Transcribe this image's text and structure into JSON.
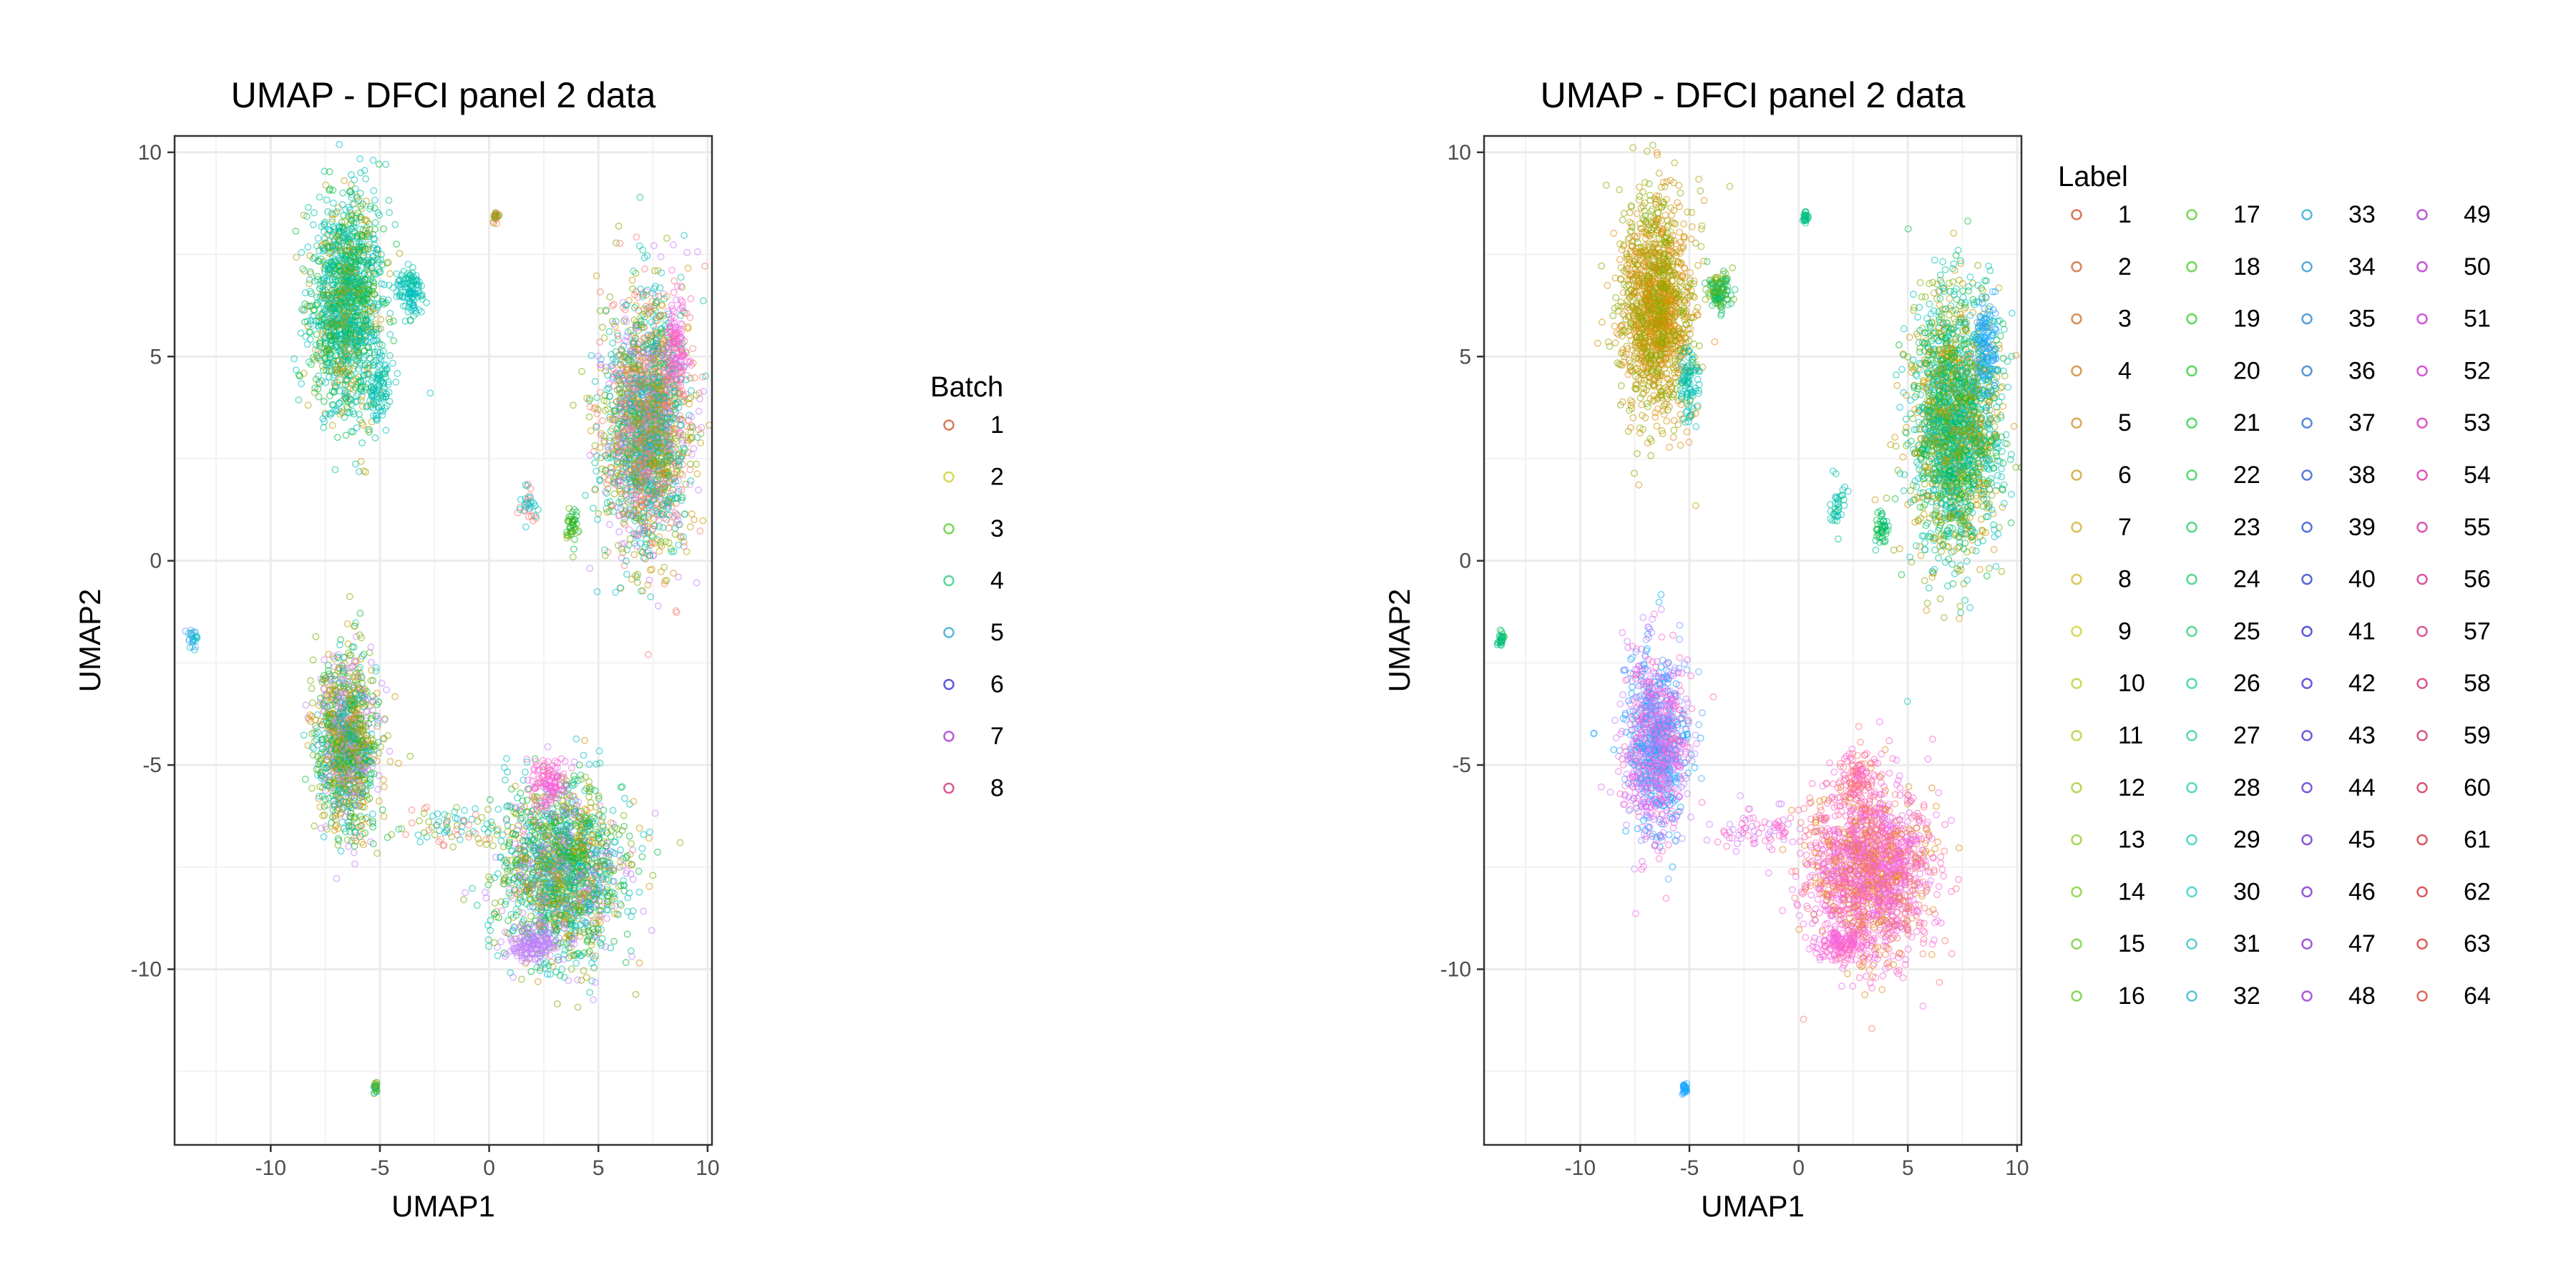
{
  "chart_data": [
    {
      "type": "scatter",
      "title": "UMAP - DFCI panel 2 data",
      "xlabel": "UMAP1",
      "ylabel": "UMAP2",
      "xlim": [
        -14.4,
        10.2
      ],
      "ylim": [
        -14.3,
        10.4
      ],
      "xticks": [
        -10,
        -5,
        0,
        5,
        10
      ],
      "yticks": [
        -10,
        -5,
        0,
        5,
        10
      ],
      "xtick_labels": [
        "-10",
        "-5",
        "0",
        "5",
        "10"
      ],
      "ytick_labels": [
        "-10",
        "-5",
        "0",
        "5",
        "10"
      ],
      "grid": true,
      "legend": {
        "title": "Batch",
        "placement": "right",
        "entries": [
          "1",
          "2",
          "3",
          "4",
          "5",
          "6",
          "7",
          "8"
        ]
      }
    },
    {
      "type": "scatter",
      "title": "UMAP - DFCI panel 2 data",
      "xlabel": "UMAP1",
      "ylabel": "UMAP2",
      "xlim": [
        -14.4,
        10.2
      ],
      "ylim": [
        -14.3,
        10.4
      ],
      "xticks": [
        -10,
        -5,
        0,
        5,
        10
      ],
      "yticks": [
        -10,
        -5,
        0,
        5,
        10
      ],
      "xtick_labels": [
        "-10",
        "-5",
        "0",
        "5",
        "10"
      ],
      "ytick_labels": [
        "-10",
        "-5",
        "0",
        "5",
        "10"
      ],
      "grid": true,
      "legend": {
        "title": "Label",
        "placement": "right",
        "columns": 4,
        "entries": [
          "1",
          "2",
          "3",
          "4",
          "5",
          "6",
          "7",
          "8",
          "9",
          "10",
          "11",
          "12",
          "13",
          "14",
          "15",
          "16",
          "17",
          "18",
          "19",
          "20",
          "21",
          "22",
          "23",
          "24",
          "25",
          "26",
          "27",
          "28",
          "29",
          "30",
          "31",
          "32",
          "33",
          "34",
          "35",
          "36",
          "37",
          "38",
          "39",
          "40",
          "41",
          "42",
          "43",
          "44",
          "45",
          "46",
          "47",
          "48",
          "49",
          "50",
          "51",
          "52",
          "53",
          "54",
          "55",
          "56",
          "57",
          "58",
          "59",
          "60",
          "61",
          "62",
          "63",
          "64"
        ]
      }
    }
  ],
  "clusters": [
    {
      "name": "upper-left",
      "cx": -6.5,
      "cy": 6.2,
      "rx": 1.5,
      "ry": 2.4,
      "weight": 1.0,
      "batch_colors": [
        "#00BFC4",
        "#00BA38",
        "#00C19F",
        "#B79F00"
      ],
      "label_colors": [
        "#CD9600",
        "#E68613",
        "#7CAE00",
        "#ABA300"
      ]
    },
    {
      "name": "upper-left-arm",
      "cx": -3.6,
      "cy": 6.6,
      "rx": 0.5,
      "ry": 0.5,
      "weight": 0.08,
      "batch_colors": [
        "#00BFC4",
        "#00C19F"
      ],
      "label_colors": [
        "#00BE67",
        "#7CAE00"
      ]
    },
    {
      "name": "upper-left-tail",
      "cx": -5.0,
      "cy": 4.3,
      "rx": 0.45,
      "ry": 0.9,
      "weight": 0.06,
      "batch_colors": [
        "#00BFC4",
        "#00C19F"
      ],
      "label_colors": [
        "#00BFC4",
        "#00C19F"
      ]
    },
    {
      "name": "upper-right",
      "cx": 7.2,
      "cy": 3.3,
      "rx": 1.8,
      "ry": 2.8,
      "weight": 1.5,
      "batch_colors": [
        "#C77CFF",
        "#00BFC4",
        "#7CAE00",
        "#CD9600",
        "#00C19F",
        "#F8766D"
      ],
      "label_colors": [
        "#7CAE00",
        "#00BA38",
        "#CD9600",
        "#00BFC4",
        "#00C19F"
      ]
    },
    {
      "name": "upper-right-edge",
      "cx": 8.6,
      "cy": 5.3,
      "rx": 0.5,
      "ry": 1.1,
      "weight": 0.08,
      "batch_colors": [
        "#FF61C3",
        "#F564E3"
      ],
      "label_colors": [
        "#00A9FF",
        "#35A2FF"
      ]
    },
    {
      "name": "mid-right-bits",
      "cx": 3.8,
      "cy": 0.8,
      "rx": 0.3,
      "ry": 0.4,
      "weight": 0.03,
      "batch_colors": [
        "#00BA38",
        "#7CAE00"
      ],
      "label_colors": [
        "#00BA38",
        "#00C08B"
      ]
    },
    {
      "name": "mid-left-bits",
      "cx": 1.8,
      "cy": 1.4,
      "rx": 0.4,
      "ry": 0.5,
      "weight": 0.025,
      "batch_colors": [
        "#F8766D",
        "#00BFC4"
      ],
      "label_colors": [
        "#00BFC4",
        "#00C08B"
      ]
    },
    {
      "name": "lower-left",
      "cx": -6.5,
      "cy": -4.5,
      "rx": 1.3,
      "ry": 2.0,
      "weight": 0.8,
      "batch_colors": [
        "#7CAE00",
        "#CD9600",
        "#C77CFF",
        "#00BFC4",
        "#00BA38"
      ],
      "label_colors": [
        "#C77CFF",
        "#00A9FF",
        "#FF61C3",
        "#E76BF3",
        "#619CFF"
      ]
    },
    {
      "name": "lower-bridge",
      "cx": -2.0,
      "cy": -6.5,
      "rx": 2.0,
      "ry": 0.5,
      "weight": 0.05,
      "batch_colors": [
        "#F8766D",
        "#00BFC4",
        "#7CAE00"
      ],
      "label_colors": [
        "#C77CFF",
        "#FF61C3"
      ]
    },
    {
      "name": "lower-right",
      "cx": 3.3,
      "cy": -7.6,
      "rx": 2.6,
      "ry": 1.9,
      "weight": 1.2,
      "batch_colors": [
        "#00BFC4",
        "#7CAE00",
        "#00BA38",
        "#CD9600",
        "#C77CFF",
        "#00C19F"
      ],
      "label_colors": [
        "#F8766D",
        "#F564E3",
        "#FF61C3",
        "#E68613",
        "#E76BF3"
      ]
    },
    {
      "name": "lower-right-pink",
      "cx": 2.7,
      "cy": -5.4,
      "rx": 0.8,
      "ry": 0.6,
      "weight": 0.08,
      "batch_colors": [
        "#F564E3",
        "#FF61C3"
      ],
      "label_colors": [
        "#FF61C3",
        "#F8766D"
      ]
    },
    {
      "name": "lower-right-purple",
      "cx": 2.0,
      "cy": -9.4,
      "rx": 1.0,
      "ry": 0.4,
      "weight": 0.1,
      "batch_colors": [
        "#C77CFF",
        "#B983FF"
      ],
      "label_colors": [
        "#F564E3",
        "#FF61C3"
      ]
    },
    {
      "name": "upper-small",
      "cx": 0.3,
      "cy": 8.4,
      "rx": 0.1,
      "ry": 0.15,
      "weight": 0.005,
      "batch_colors": [
        "#7CAE00",
        "#F8766D"
      ],
      "label_colors": [
        "#00BF7D",
        "#00C08B"
      ]
    },
    {
      "name": "left-small",
      "cx": -13.6,
      "cy": -1.9,
      "rx": 0.2,
      "ry": 0.2,
      "weight": 0.008,
      "batch_colors": [
        "#00BFC4",
        "#619CFF"
      ],
      "label_colors": [
        "#00BA38",
        "#00C08B"
      ]
    },
    {
      "name": "bottom-small",
      "cx": -5.2,
      "cy": -12.9,
      "rx": 0.1,
      "ry": 0.15,
      "weight": 0.004,
      "batch_colors": [
        "#7CAE00",
        "#00C19F"
      ],
      "label_colors": [
        "#00A9FF",
        "#35A2FF"
      ]
    }
  ]
}
